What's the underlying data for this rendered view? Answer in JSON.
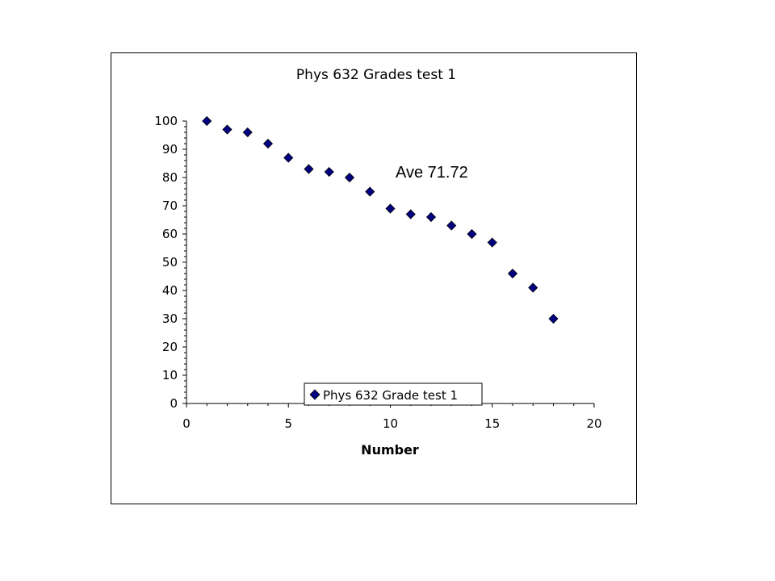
{
  "chart_data": {
    "type": "scatter",
    "title": "Phys 632 Grades test 1",
    "xlabel": "Number",
    "ylabel": "",
    "xlim": [
      0,
      20
    ],
    "ylim": [
      0,
      100
    ],
    "x_ticks": [
      0,
      5,
      10,
      15,
      20
    ],
    "y_ticks": [
      0,
      10,
      20,
      30,
      40,
      50,
      60,
      70,
      80,
      90,
      100
    ],
    "grid": false,
    "legend_position": "bottom-center",
    "annotation": "Ave 71.72",
    "series": [
      {
        "name": "Phys 632 Grade test 1",
        "color": "#000080",
        "marker": "diamond",
        "x": [
          1,
          2,
          3,
          4,
          5,
          6,
          7,
          8,
          9,
          10,
          11,
          12,
          13,
          14,
          15,
          16,
          17,
          18
        ],
        "y": [
          100,
          97,
          96,
          92,
          87,
          83,
          82,
          80,
          75,
          69,
          67,
          66,
          63,
          60,
          57,
          46,
          41,
          30
        ]
      }
    ]
  }
}
